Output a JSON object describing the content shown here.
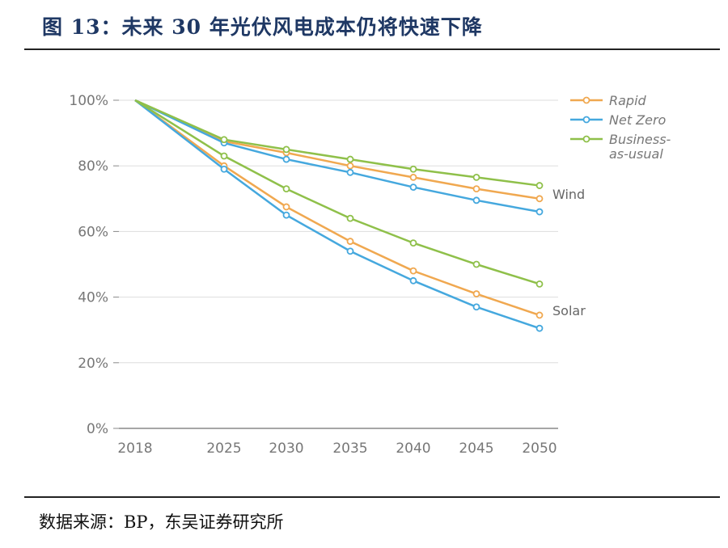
{
  "title": "图 13：未来 30 年光伏风电成本仍将快速下降",
  "source": "数据来源：BP，东吴证券研究所",
  "chart_data": {
    "type": "line",
    "x": [
      "2018",
      "2025",
      "2030",
      "2035",
      "2040",
      "2045",
      "2050"
    ],
    "ylim": [
      0,
      100
    ],
    "yticks": [
      "0%",
      "20%",
      "40%",
      "60%",
      "80%",
      "100%"
    ],
    "legend_position": "top-right",
    "colors": {
      "Rapid": "#f0a850",
      "Net Zero": "#45a8de",
      "Business-as-usual": "#8fc04a"
    },
    "legend": [
      {
        "name": "Rapid",
        "lines": [
          "Rapid"
        ]
      },
      {
        "name": "Net Zero",
        "lines": [
          "Net Zero"
        ]
      },
      {
        "name": "Business-as-usual",
        "lines": [
          "Business-",
          "as-usual"
        ]
      }
    ],
    "groups": [
      {
        "label": "Wind",
        "series": [
          {
            "name": "Rapid",
            "values": [
              100,
              87.5,
              84,
              80,
              76.5,
              73,
              70
            ]
          },
          {
            "name": "Net Zero",
            "values": [
              100,
              87,
              82,
              78,
              73.5,
              69.5,
              66
            ]
          },
          {
            "name": "Business-as-usual",
            "values": [
              100,
              88,
              85,
              82,
              79,
              76.5,
              74
            ]
          }
        ]
      },
      {
        "label": "Solar",
        "series": [
          {
            "name": "Rapid",
            "values": [
              100,
              80,
              67.5,
              57,
              48,
              41,
              34.5
            ]
          },
          {
            "name": "Net Zero",
            "values": [
              100,
              79,
              65,
              54,
              45,
              37,
              30.5
            ]
          },
          {
            "name": "Business-as-usual",
            "values": [
              100,
              83,
              73,
              64,
              56.5,
              50,
              44
            ]
          }
        ]
      }
    ]
  }
}
